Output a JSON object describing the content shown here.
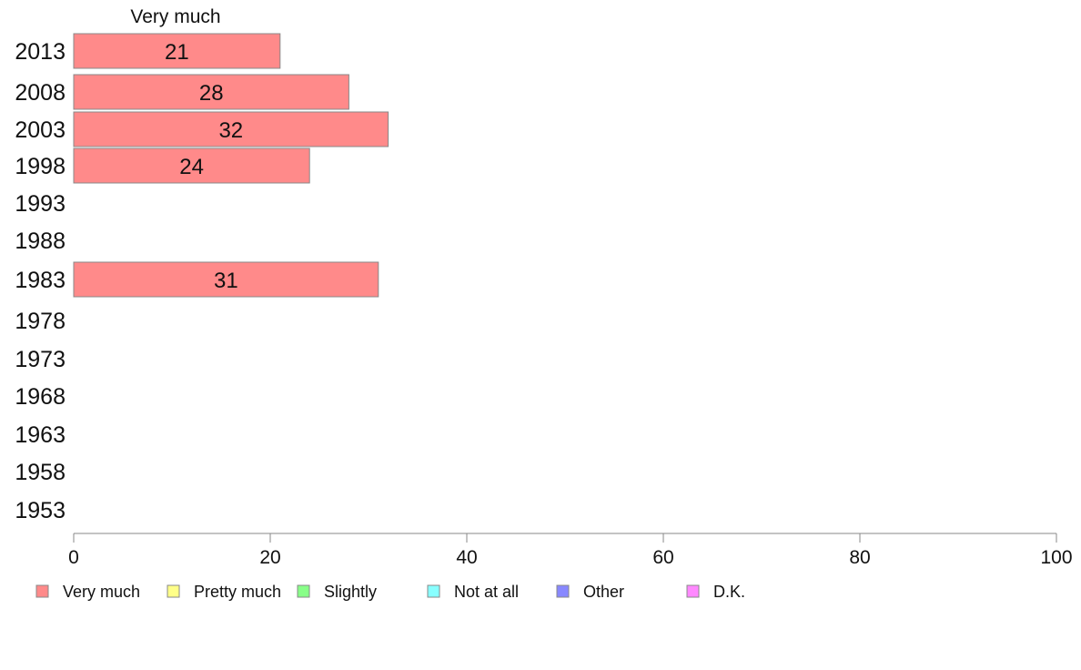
{
  "chart_data": {
    "type": "bar",
    "orientation": "horizontal",
    "series_header": "Very much",
    "categories": [
      "2013",
      "2008",
      "2003",
      "1998",
      "1993",
      "1988",
      "1983",
      "1978",
      "1973",
      "1968",
      "1963",
      "1958",
      "1953"
    ],
    "series": [
      {
        "name": "Very much",
        "values": [
          21,
          28,
          32,
          24,
          null,
          null,
          31,
          null,
          null,
          null,
          null,
          null,
          null
        ]
      }
    ],
    "data_labels": [
      "21",
      "28",
      "32",
      "24",
      "",
      "",
      "31",
      "",
      "",
      "",
      "",
      "",
      ""
    ],
    "xlim": [
      0,
      100
    ],
    "x_ticks": [
      "0",
      "20",
      "40",
      "60",
      "80",
      "100"
    ],
    "grid": false,
    "legend_position": "bottom",
    "legend": [
      {
        "label": "Very much",
        "color": "#ff8a8a"
      },
      {
        "label": "Pretty much",
        "color": "#ffff88"
      },
      {
        "label": "Slightly",
        "color": "#88ff88"
      },
      {
        "label": "Not at all",
        "color": "#88ffff"
      },
      {
        "label": "Other",
        "color": "#8888ff"
      },
      {
        "label": "D.K.",
        "color": "#ff88ff"
      }
    ],
    "bar_color": "#ff8a8a"
  }
}
